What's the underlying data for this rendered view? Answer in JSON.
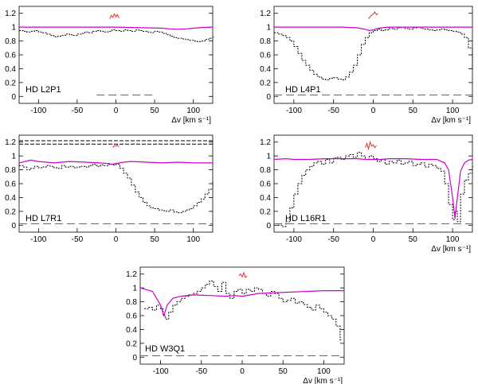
{
  "colors": {
    "data": "#000000",
    "model": "#cc00cc",
    "residual": "#e8302a",
    "frame": "#000000",
    "background": "#ffffff"
  },
  "chart_data": [
    {
      "type": "line",
      "panel_label": "HD  L2P1",
      "xlabel": "Δv [km s⁻¹]",
      "xlim": [
        -125,
        125
      ],
      "ylim": [
        -0.1,
        1.3
      ],
      "xticks": [
        -100,
        -50,
        0,
        50,
        100
      ],
      "yticks": [
        0,
        0.2,
        0.4,
        0.6,
        0.8,
        1,
        1.2
      ],
      "series": [
        {
          "kind": "data",
          "x": [
            -125,
            -120,
            -115,
            -110,
            -105,
            -100,
            -95,
            -90,
            -85,
            -80,
            -75,
            -70,
            -65,
            -60,
            -55,
            -50,
            -45,
            -40,
            -35,
            -30,
            -25,
            -20,
            -15,
            -10,
            -5,
            0,
            5,
            10,
            15,
            20,
            25,
            30,
            35,
            40,
            45,
            50,
            55,
            60,
            65,
            70,
            75,
            80,
            85,
            90,
            95,
            100,
            105,
            110,
            115,
            120,
            125
          ],
          "y": [
            0.95,
            0.94,
            0.93,
            0.94,
            0.95,
            0.93,
            0.92,
            0.9,
            0.88,
            0.86,
            0.87,
            0.88,
            0.9,
            0.89,
            0.88,
            0.9,
            0.91,
            0.93,
            0.92,
            0.94,
            0.95,
            0.94,
            0.93,
            0.94,
            0.96,
            0.95,
            0.94,
            0.96,
            0.95,
            0.94,
            0.96,
            0.95,
            0.94,
            0.93,
            0.92,
            0.94,
            0.93,
            0.91,
            0.89,
            0.87,
            0.85,
            0.84,
            0.83,
            0.82,
            0.81,
            0.8,
            0.79,
            0.8,
            0.82,
            0.84,
            0.86
          ]
        },
        {
          "kind": "model",
          "x": [
            -125,
            -60,
            -20,
            0,
            20,
            40,
            60,
            70,
            80,
            90,
            100,
            110,
            125
          ],
          "y": [
            1.0,
            1.0,
            1.0,
            1.0,
            0.995,
            0.99,
            0.985,
            0.975,
            0.97,
            0.975,
            0.985,
            0.995,
            1.0
          ]
        },
        {
          "kind": "residual",
          "x": [
            -8,
            -6,
            -4,
            -2,
            0,
            2,
            4
          ],
          "y": [
            1.12,
            1.17,
            1.14,
            1.19,
            1.15,
            1.18,
            1.13
          ]
        },
        {
          "kind": "zero",
          "x": [
            -25,
            -15,
            -10,
            0,
            5,
            15,
            20,
            30,
            35,
            45,
            50
          ],
          "y": [
            0.02,
            0.02,
            0.02,
            0.02,
            0.02,
            0.02,
            0.02,
            0.02,
            0.02,
            0.02,
            0.02
          ]
        }
      ]
    },
    {
      "type": "line",
      "panel_label": "HD  L4P1",
      "xlabel": "Δv [km s⁻¹]",
      "xlim": [
        -125,
        125
      ],
      "ylim": [
        -0.1,
        1.3
      ],
      "xticks": [
        -100,
        -50,
        0,
        50,
        100
      ],
      "yticks": [
        0,
        0.2,
        0.4,
        0.6,
        0.8,
        1,
        1.2
      ],
      "series": [
        {
          "kind": "data",
          "x": [
            -125,
            -120,
            -115,
            -110,
            -105,
            -100,
            -95,
            -90,
            -85,
            -80,
            -75,
            -70,
            -65,
            -60,
            -55,
            -50,
            -45,
            -40,
            -35,
            -30,
            -25,
            -20,
            -15,
            -10,
            -5,
            0,
            5,
            10,
            15,
            20,
            25,
            30,
            35,
            40,
            45,
            50,
            55,
            60,
            65,
            70,
            75,
            80,
            85,
            90,
            95,
            100,
            105,
            110,
            115,
            120,
            125
          ],
          "y": [
            0.92,
            0.9,
            0.88,
            0.85,
            0.8,
            0.72,
            0.62,
            0.52,
            0.45,
            0.38,
            0.32,
            0.28,
            0.25,
            0.24,
            0.26,
            0.27,
            0.25,
            0.24,
            0.28,
            0.35,
            0.45,
            0.6,
            0.75,
            0.85,
            0.92,
            0.95,
            0.97,
            0.95,
            0.96,
            0.98,
            0.97,
            0.99,
            1.0,
            0.98,
            0.97,
            0.99,
            1.0,
            0.98,
            0.97,
            0.96,
            0.95,
            0.96,
            0.97,
            0.96,
            0.95,
            0.94,
            0.93,
            0.9,
            0.85,
            0.7,
            0.4
          ]
        },
        {
          "kind": "model",
          "x": [
            -125,
            -40,
            -20,
            -10,
            -5,
            0,
            5,
            10,
            20,
            40,
            125
          ],
          "y": [
            1.0,
            1.0,
            0.99,
            0.97,
            0.95,
            0.96,
            0.98,
            0.99,
            1.0,
            1.0,
            1.0
          ]
        },
        {
          "kind": "residual",
          "x": [
            -6,
            -4,
            -2,
            0,
            2,
            4,
            6
          ],
          "y": [
            1.12,
            1.15,
            1.17,
            1.19,
            1.22,
            1.18,
            1.2
          ]
        },
        {
          "kind": "zero",
          "x": [
            -125,
            125
          ],
          "y": [
            0.02,
            0.02
          ]
        }
      ]
    },
    {
      "type": "line",
      "panel_label": "HD  L7R1",
      "xlabel": "",
      "xlim": [
        -125,
        125
      ],
      "ylim": [
        -0.1,
        1.3
      ],
      "xticks": [
        -100,
        -50,
        0,
        50,
        100
      ],
      "yticks": [
        0,
        0.2,
        0.4,
        0.6,
        0.8,
        1,
        1.2
      ],
      "series": [
        {
          "kind": "data",
          "x": [
            -125,
            -120,
            -115,
            -110,
            -105,
            -100,
            -95,
            -90,
            -85,
            -80,
            -75,
            -70,
            -65,
            -60,
            -55,
            -50,
            -45,
            -40,
            -35,
            -30,
            -25,
            -20,
            -15,
            -10,
            -5,
            0,
            5,
            10,
            15,
            20,
            25,
            30,
            35,
            40,
            45,
            50,
            55,
            60,
            65,
            70,
            75,
            80,
            85,
            90,
            95,
            100,
            105,
            110,
            115,
            120,
            125
          ],
          "y": [
            0.86,
            0.84,
            0.8,
            0.82,
            0.85,
            0.83,
            0.84,
            0.86,
            0.85,
            0.83,
            0.82,
            0.86,
            0.84,
            0.85,
            0.83,
            0.84,
            0.85,
            0.84,
            0.86,
            0.88,
            0.85,
            0.87,
            0.86,
            0.88,
            0.87,
            0.88,
            0.82,
            0.75,
            0.68,
            0.58,
            0.48,
            0.4,
            0.33,
            0.28,
            0.25,
            0.24,
            0.22,
            0.21,
            0.2,
            0.22,
            0.19,
            0.18,
            0.2,
            0.22,
            0.24,
            0.28,
            0.33,
            0.38,
            0.45,
            0.52,
            0.62
          ]
        },
        {
          "kind": "model",
          "x": [
            -125,
            -110,
            -100,
            -80,
            -60,
            -40,
            -20,
            -10,
            -5,
            0,
            5,
            10,
            20,
            40,
            60,
            80,
            100,
            125
          ],
          "y": [
            0.9,
            0.94,
            0.92,
            0.9,
            0.92,
            0.91,
            0.9,
            0.89,
            0.88,
            0.89,
            0.9,
            0.91,
            0.92,
            0.91,
            0.9,
            0.91,
            0.9,
            0.9
          ]
        },
        {
          "kind": "residual",
          "x": [
            -4,
            -2,
            0,
            2,
            4
          ],
          "y": [
            1.12,
            1.15,
            1.14,
            1.16,
            1.13
          ]
        },
        {
          "kind": "dashed-top",
          "x": [
            -125,
            125
          ],
          "y": [
            1.22,
            1.22
          ]
        },
        {
          "kind": "dashed-top",
          "x": [
            -125,
            125
          ],
          "y": [
            1.17,
            1.17
          ]
        },
        {
          "kind": "zero",
          "x": [
            -125,
            125
          ],
          "y": [
            0.02,
            0.02
          ]
        }
      ]
    },
    {
      "type": "line",
      "panel_label": "HD  L16R1",
      "xlabel": "Δv [km s⁻¹]",
      "xlim": [
        -125,
        125
      ],
      "ylim": [
        -0.1,
        1.3
      ],
      "xticks": [
        -100,
        -50,
        0,
        50,
        100
      ],
      "yticks": [
        0,
        0.2,
        0.4,
        0.6,
        0.8,
        1,
        1.2
      ],
      "series": [
        {
          "kind": "data",
          "x": [
            -120,
            -115,
            -110,
            -105,
            -100,
            -95,
            -90,
            -85,
            -80,
            -75,
            -70,
            -65,
            -60,
            -55,
            -50,
            -45,
            -40,
            -35,
            -30,
            -25,
            -20,
            -15,
            -10,
            -5,
            0,
            5,
            10,
            15,
            20,
            25,
            30,
            35,
            40,
            45,
            50,
            55,
            60,
            65,
            70,
            75,
            80,
            85,
            90,
            95,
            100,
            103,
            106,
            110,
            115,
            120,
            125
          ],
          "y": [
            0.0,
            -0.02,
            0.05,
            0.25,
            0.45,
            0.6,
            0.72,
            0.8,
            0.85,
            0.9,
            0.92,
            0.88,
            0.95,
            0.9,
            0.97,
            0.98,
            0.95,
            1.0,
            1.02,
            0.98,
            1.05,
            1.0,
            0.95,
            1.0,
            0.96,
            0.92,
            0.95,
            0.88,
            0.92,
            0.9,
            0.94,
            0.88,
            0.9,
            0.92,
            0.86,
            0.88,
            0.9,
            0.84,
            0.88,
            0.86,
            0.82,
            0.78,
            0.6,
            0.3,
            0.08,
            0.2,
            0.05,
            0.45,
            0.65,
            0.75,
            0.85
          ]
        },
        {
          "kind": "model",
          "x": [
            -125,
            -110,
            -100,
            -80,
            -60,
            -40,
            -20,
            -10,
            0,
            10,
            20,
            40,
            60,
            80,
            90,
            95,
            100,
            103,
            106,
            110,
            115,
            120,
            125
          ],
          "y": [
            0.95,
            0.96,
            0.95,
            0.95,
            0.96,
            0.96,
            0.96,
            0.95,
            0.95,
            0.95,
            0.96,
            0.96,
            0.95,
            0.95,
            0.9,
            0.8,
            0.4,
            0.1,
            0.4,
            0.78,
            0.9,
            0.94,
            0.95
          ]
        },
        {
          "kind": "residual",
          "x": [
            -10,
            -8,
            -6,
            -4,
            -2,
            0,
            2,
            4
          ],
          "y": [
            1.12,
            1.18,
            1.1,
            1.2,
            1.14,
            1.16,
            1.12,
            1.15
          ]
        },
        {
          "kind": "zero",
          "x": [
            -125,
            125
          ],
          "y": [
            0.02,
            0.02
          ]
        }
      ]
    },
    {
      "type": "line",
      "panel_label": "HD  W3Q1",
      "xlabel": "Δv [km s⁻¹]",
      "xlim": [
        -125,
        125
      ],
      "ylim": [
        -0.1,
        1.3
      ],
      "xticks": [
        -100,
        -50,
        0,
        50,
        100
      ],
      "yticks": [
        0,
        0.2,
        0.4,
        0.6,
        0.8,
        1,
        1.2
      ],
      "series": [
        {
          "kind": "data",
          "x": [
            -120,
            -115,
            -110,
            -105,
            -100,
            -97,
            -94,
            -90,
            -85,
            -80,
            -75,
            -70,
            -65,
            -60,
            -55,
            -50,
            -45,
            -40,
            -35,
            -30,
            -25,
            -20,
            -15,
            -10,
            -5,
            0,
            5,
            10,
            15,
            20,
            25,
            30,
            35,
            40,
            45,
            50,
            55,
            60,
            65,
            70,
            75,
            80,
            85,
            90,
            95,
            100,
            105,
            110,
            115,
            120
          ],
          "y": [
            0.7,
            0.72,
            0.68,
            0.75,
            0.7,
            0.6,
            0.55,
            0.65,
            0.75,
            0.8,
            0.85,
            0.88,
            0.9,
            0.92,
            0.95,
            1.0,
            1.05,
            1.1,
            1.02,
            0.95,
            1.08,
            0.92,
            0.85,
            0.95,
            0.98,
            0.92,
            0.98,
            0.95,
            1.0,
            0.98,
            0.92,
            0.88,
            0.95,
            0.92,
            0.85,
            0.8,
            0.82,
            0.85,
            0.78,
            0.8,
            0.76,
            0.72,
            0.68,
            0.75,
            0.7,
            0.65,
            0.6,
            0.55,
            0.45,
            0.25
          ]
        },
        {
          "kind": "model",
          "x": [
            -125,
            -110,
            -100,
            -96,
            -92,
            -85,
            -75,
            -60,
            -40,
            -20,
            -10,
            0,
            10,
            20,
            40,
            60,
            80,
            100,
            125
          ],
          "y": [
            1.0,
            0.95,
            0.75,
            0.6,
            0.75,
            0.85,
            0.88,
            0.9,
            0.89,
            0.88,
            0.89,
            0.88,
            0.9,
            0.92,
            0.93,
            0.94,
            0.95,
            0.96,
            0.96
          ]
        },
        {
          "kind": "residual",
          "x": [
            -4,
            -2,
            0,
            2,
            4,
            6
          ],
          "y": [
            1.18,
            1.2,
            1.16,
            1.22,
            1.15,
            1.17
          ]
        },
        {
          "kind": "zero",
          "x": [
            -125,
            125
          ],
          "y": [
            0.02,
            0.02
          ]
        }
      ]
    }
  ]
}
